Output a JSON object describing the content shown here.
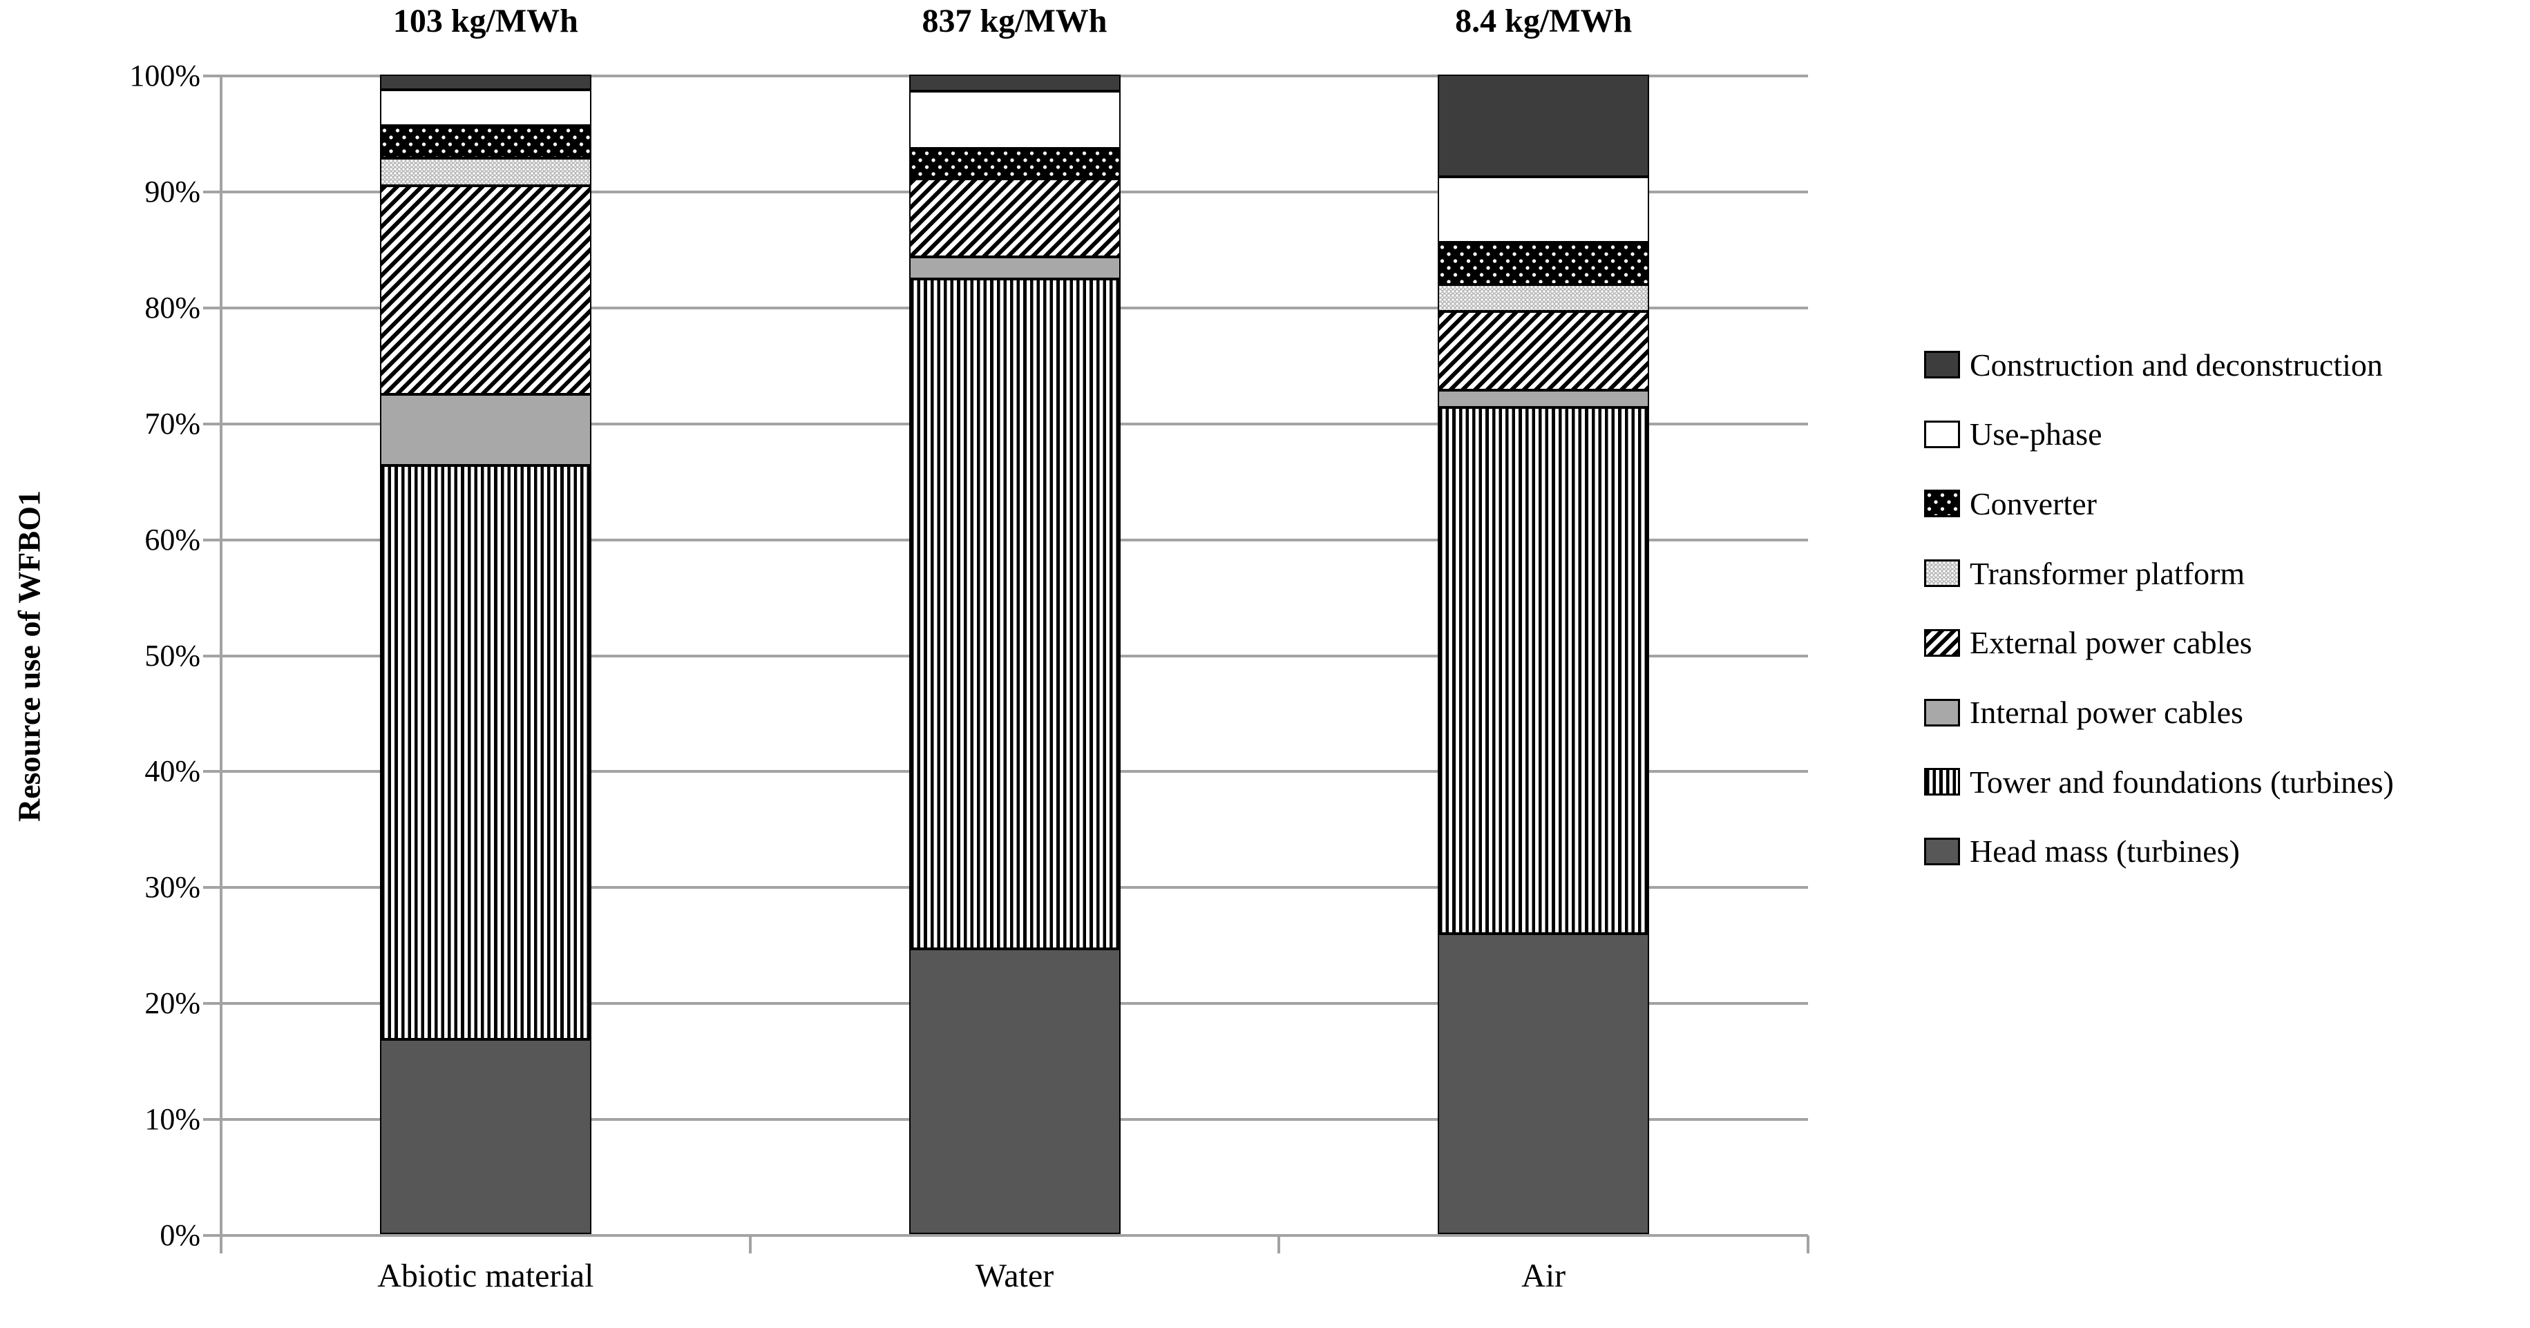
{
  "y_axis": {
    "title": "Resource use of WFBO1",
    "tick_labels": [
      "100%",
      "90%",
      "80%",
      "70%",
      "60%",
      "50%",
      "40%",
      "30%",
      "20%",
      "10%",
      "0%"
    ]
  },
  "x_axis": {
    "categories": [
      "Abiotic material",
      "Water",
      "Air"
    ]
  },
  "bar_totals": [
    "103 kg/MWh",
    "837 kg/MWh",
    "8.4 kg/MWh"
  ],
  "legend": [
    {
      "label": "Construction and deconstruction",
      "pattern": "solid-construction"
    },
    {
      "label": "Use-phase",
      "pattern": "solid-white"
    },
    {
      "label": "Converter",
      "pattern": "black-dots"
    },
    {
      "label": "Transformer platform",
      "pattern": "light-dots"
    },
    {
      "label": "External power cables",
      "pattern": "diagonal"
    },
    {
      "label": "Internal power cables",
      "pattern": "solid-internal"
    },
    {
      "label": "Tower and foundations (turbines)",
      "pattern": "vertical"
    },
    {
      "label": "Head mass (turbines)",
      "pattern": "solid-headmass"
    }
  ],
  "colors": {
    "construction": "#3d3d3d",
    "head_mass": "#575757",
    "internal_cables": "#a8a8a8",
    "pattern_black": "#000000",
    "pattern_white": "#ffffff",
    "transformer_base": "#b9b9b9",
    "gridline": "#a3a3a3",
    "text": "#000000",
    "background": "#ffffff"
  },
  "chart_data": {
    "type": "bar",
    "stacked": true,
    "units": "percent",
    "title": "",
    "xlabel": "",
    "ylabel": "Resource use of WFBO1",
    "ylim": [
      0,
      100
    ],
    "ytick_step": 10,
    "grid": "horizontal",
    "legend_position": "right",
    "categories": [
      "Abiotic material",
      "Water",
      "Air"
    ],
    "category_totals": [
      "103 kg/MWh",
      "837 kg/MWh",
      "8.4 kg/MWh"
    ],
    "series": [
      {
        "name": "Construction and deconstruction",
        "pattern": "solid-construction",
        "values": [
          1.3,
          1.4,
          8.8
        ]
      },
      {
        "name": "Use-phase",
        "pattern": "solid-white",
        "values": [
          3.1,
          5.0,
          5.7
        ]
      },
      {
        "name": "Converter",
        "pattern": "black-dots",
        "values": [
          2.8,
          2.6,
          3.6
        ]
      },
      {
        "name": "Transformer platform",
        "pattern": "light-dots",
        "values": [
          2.4,
          0.0,
          2.3
        ]
      },
      {
        "name": "External power cables",
        "pattern": "diagonal",
        "values": [
          18.0,
          6.7,
          6.8
        ]
      },
      {
        "name": "Internal power cables",
        "pattern": "solid-internal",
        "values": [
          6.1,
          1.9,
          1.5
        ]
      },
      {
        "name": "Tower and foundations (turbines)",
        "pattern": "vertical",
        "values": [
          49.5,
          57.8,
          45.4
        ]
      },
      {
        "name": "Head mass (turbines)",
        "pattern": "solid-headmass",
        "values": [
          16.8,
          24.6,
          25.9
        ]
      }
    ]
  }
}
